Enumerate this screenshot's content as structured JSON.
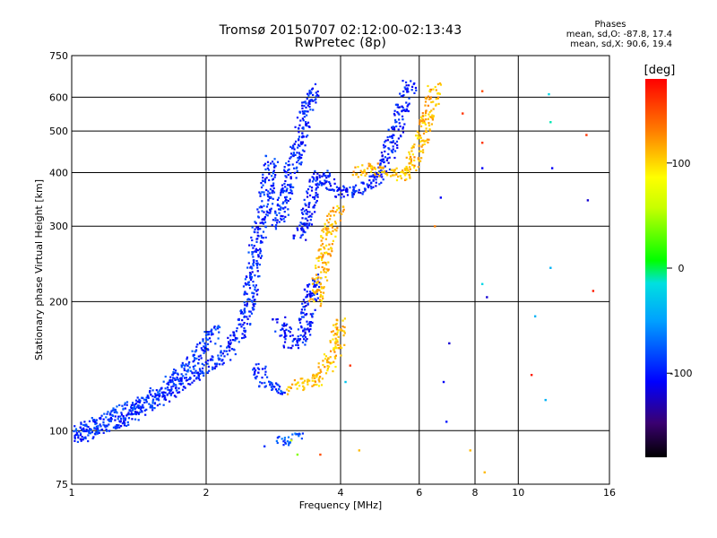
{
  "chart_data": {
    "type": "scatter",
    "title": "Tromsø 20150707 02:12:00-02:13:43",
    "subtitle": "RwPretec (8p)",
    "xlabel": "Frequency [MHz]",
    "ylabel": "Stationary phase Virtual Height [km]",
    "x_scale": "log",
    "y_scale": "log",
    "xlim": [
      1,
      16
    ],
    "ylim": [
      75,
      750
    ],
    "x_ticks": [
      1,
      2,
      4,
      6,
      8,
      10,
      16
    ],
    "y_ticks": [
      75,
      100,
      200,
      300,
      400,
      500,
      600,
      750
    ],
    "grid": true,
    "phase_stats": {
      "header": "Phases",
      "o_line": "mean, sd,O: -87.8, 17.4",
      "x_line": "mean, sd,X:  90.6, 19.4"
    },
    "colorbar": {
      "label": "[deg]",
      "range": [
        -180,
        180
      ],
      "ticks": [
        100,
        0,
        -100
      ],
      "colormap": "rainbow"
    },
    "traces": [
      {
        "phase": -95,
        "points": [
          [
            1.0,
            96
          ],
          [
            1.05,
            97
          ],
          [
            1.1,
            98
          ],
          [
            1.2,
            103
          ],
          [
            1.3,
            104
          ],
          [
            1.4,
            110
          ],
          [
            1.5,
            115
          ],
          [
            1.6,
            120
          ],
          [
            1.7,
            125
          ],
          [
            1.8,
            130
          ],
          [
            1.9,
            135
          ],
          [
            2.0,
            140
          ],
          [
            2.2,
            150
          ],
          [
            2.4,
            170
          ],
          [
            2.5,
            200
          ],
          [
            2.55,
            240
          ],
          [
            2.6,
            280
          ],
          [
            2.65,
            300
          ],
          [
            2.7,
            320
          ],
          [
            2.75,
            380
          ],
          [
            2.8,
            430
          ]
        ]
      },
      {
        "phase": -90,
        "points": [
          [
            1.0,
            100
          ],
          [
            1.1,
            104
          ],
          [
            1.2,
            108
          ],
          [
            1.3,
            112
          ],
          [
            1.4,
            116
          ],
          [
            1.5,
            120
          ],
          [
            1.6,
            126
          ],
          [
            1.7,
            132
          ],
          [
            1.8,
            140
          ],
          [
            1.9,
            150
          ],
          [
            2.0,
            160
          ],
          [
            2.1,
            175
          ]
        ]
      },
      {
        "phase": -95,
        "points": [
          [
            2.9,
            300
          ],
          [
            3.0,
            350
          ],
          [
            3.1,
            400
          ],
          [
            3.2,
            450
          ],
          [
            3.3,
            520
          ],
          [
            3.4,
            580
          ],
          [
            3.5,
            630
          ]
        ]
      },
      {
        "phase": -100,
        "points": [
          [
            3.2,
            280
          ],
          [
            3.3,
            300
          ],
          [
            3.4,
            330
          ],
          [
            3.5,
            370
          ],
          [
            3.6,
            400
          ],
          [
            3.7,
            380
          ],
          [
            3.8,
            370
          ],
          [
            4.0,
            360
          ],
          [
            4.3,
            360
          ],
          [
            4.6,
            370
          ],
          [
            4.9,
            400
          ],
          [
            5.1,
            440
          ],
          [
            5.3,
            500
          ],
          [
            5.5,
            560
          ],
          [
            5.7,
            640
          ]
        ]
      },
      {
        "phase": -100,
        "points": [
          [
            2.9,
            180
          ],
          [
            3.0,
            170
          ],
          [
            3.1,
            160
          ],
          [
            3.2,
            160
          ],
          [
            3.3,
            170
          ],
          [
            3.4,
            200
          ],
          [
            3.5,
            230
          ]
        ]
      },
      {
        "phase": -90,
        "points": [
          [
            2.6,
            140
          ],
          [
            2.7,
            130
          ],
          [
            2.8,
            128
          ],
          [
            2.9,
            125
          ],
          [
            3.0,
            125
          ]
        ]
      },
      {
        "phase": 110,
        "points": [
          [
            3.1,
            125
          ],
          [
            3.3,
            128
          ],
          [
            3.5,
            130
          ],
          [
            3.7,
            140
          ],
          [
            3.9,
            155
          ],
          [
            4.0,
            180
          ]
        ]
      },
      {
        "phase": 110,
        "points": [
          [
            3.5,
            200
          ],
          [
            3.6,
            230
          ],
          [
            3.7,
            270
          ],
          [
            3.8,
            300
          ],
          [
            3.9,
            320
          ],
          [
            4.0,
            330
          ]
        ]
      },
      {
        "phase": 110,
        "points": [
          [
            4.3,
            400
          ],
          [
            4.6,
            410
          ],
          [
            4.9,
            405
          ],
          [
            5.2,
            395
          ],
          [
            5.5,
            395
          ],
          [
            5.8,
            420
          ],
          [
            6.0,
            460
          ],
          [
            6.2,
            520
          ],
          [
            6.4,
            580
          ],
          [
            6.5,
            640
          ]
        ]
      },
      {
        "phase": -80,
        "points": [
          [
            2.9,
            95
          ],
          [
            3.0,
            95
          ],
          [
            3.2,
            96
          ]
        ]
      }
    ],
    "sparse_points": [
      {
        "x": 8.3,
        "y": 410,
        "phase": -110
      },
      {
        "x": 8.3,
        "y": 470,
        "phase": 160
      },
      {
        "x": 8.3,
        "y": 620,
        "phase": 150
      },
      {
        "x": 8.5,
        "y": 205,
        "phase": -120
      },
      {
        "x": 8.3,
        "y": 220,
        "phase": -20
      },
      {
        "x": 8.4,
        "y": 80,
        "phase": 110
      },
      {
        "x": 7.8,
        "y": 90,
        "phase": 110
      },
      {
        "x": 7.5,
        "y": 550,
        "phase": 160
      },
      {
        "x": 7.0,
        "y": 160,
        "phase": -120
      },
      {
        "x": 6.8,
        "y": 130,
        "phase": -110
      },
      {
        "x": 6.9,
        "y": 105,
        "phase": -100
      },
      {
        "x": 6.7,
        "y": 350,
        "phase": -110
      },
      {
        "x": 6.5,
        "y": 300,
        "phase": 130
      },
      {
        "x": 11.7,
        "y": 610,
        "phase": -20
      },
      {
        "x": 11.8,
        "y": 525,
        "phase": -10
      },
      {
        "x": 11.9,
        "y": 410,
        "phase": -110
      },
      {
        "x": 11.8,
        "y": 240,
        "phase": -40
      },
      {
        "x": 11.5,
        "y": 118,
        "phase": -40
      },
      {
        "x": 10.7,
        "y": 135,
        "phase": 170
      },
      {
        "x": 10.9,
        "y": 185,
        "phase": -40
      },
      {
        "x": 14.2,
        "y": 490,
        "phase": 160
      },
      {
        "x": 14.3,
        "y": 345,
        "phase": -120
      },
      {
        "x": 14.7,
        "y": 212,
        "phase": 170
      },
      {
        "x": 4.2,
        "y": 142,
        "phase": 160
      },
      {
        "x": 4.1,
        "y": 130,
        "phase": -30
      },
      {
        "x": 4.4,
        "y": 90,
        "phase": 110
      },
      {
        "x": 3.1,
        "y": 95,
        "phase": 60
      },
      {
        "x": 3.2,
        "y": 88,
        "phase": 40
      },
      {
        "x": 3.6,
        "y": 88,
        "phase": 150
      },
      {
        "x": 2.7,
        "y": 92,
        "phase": -90
      }
    ]
  }
}
